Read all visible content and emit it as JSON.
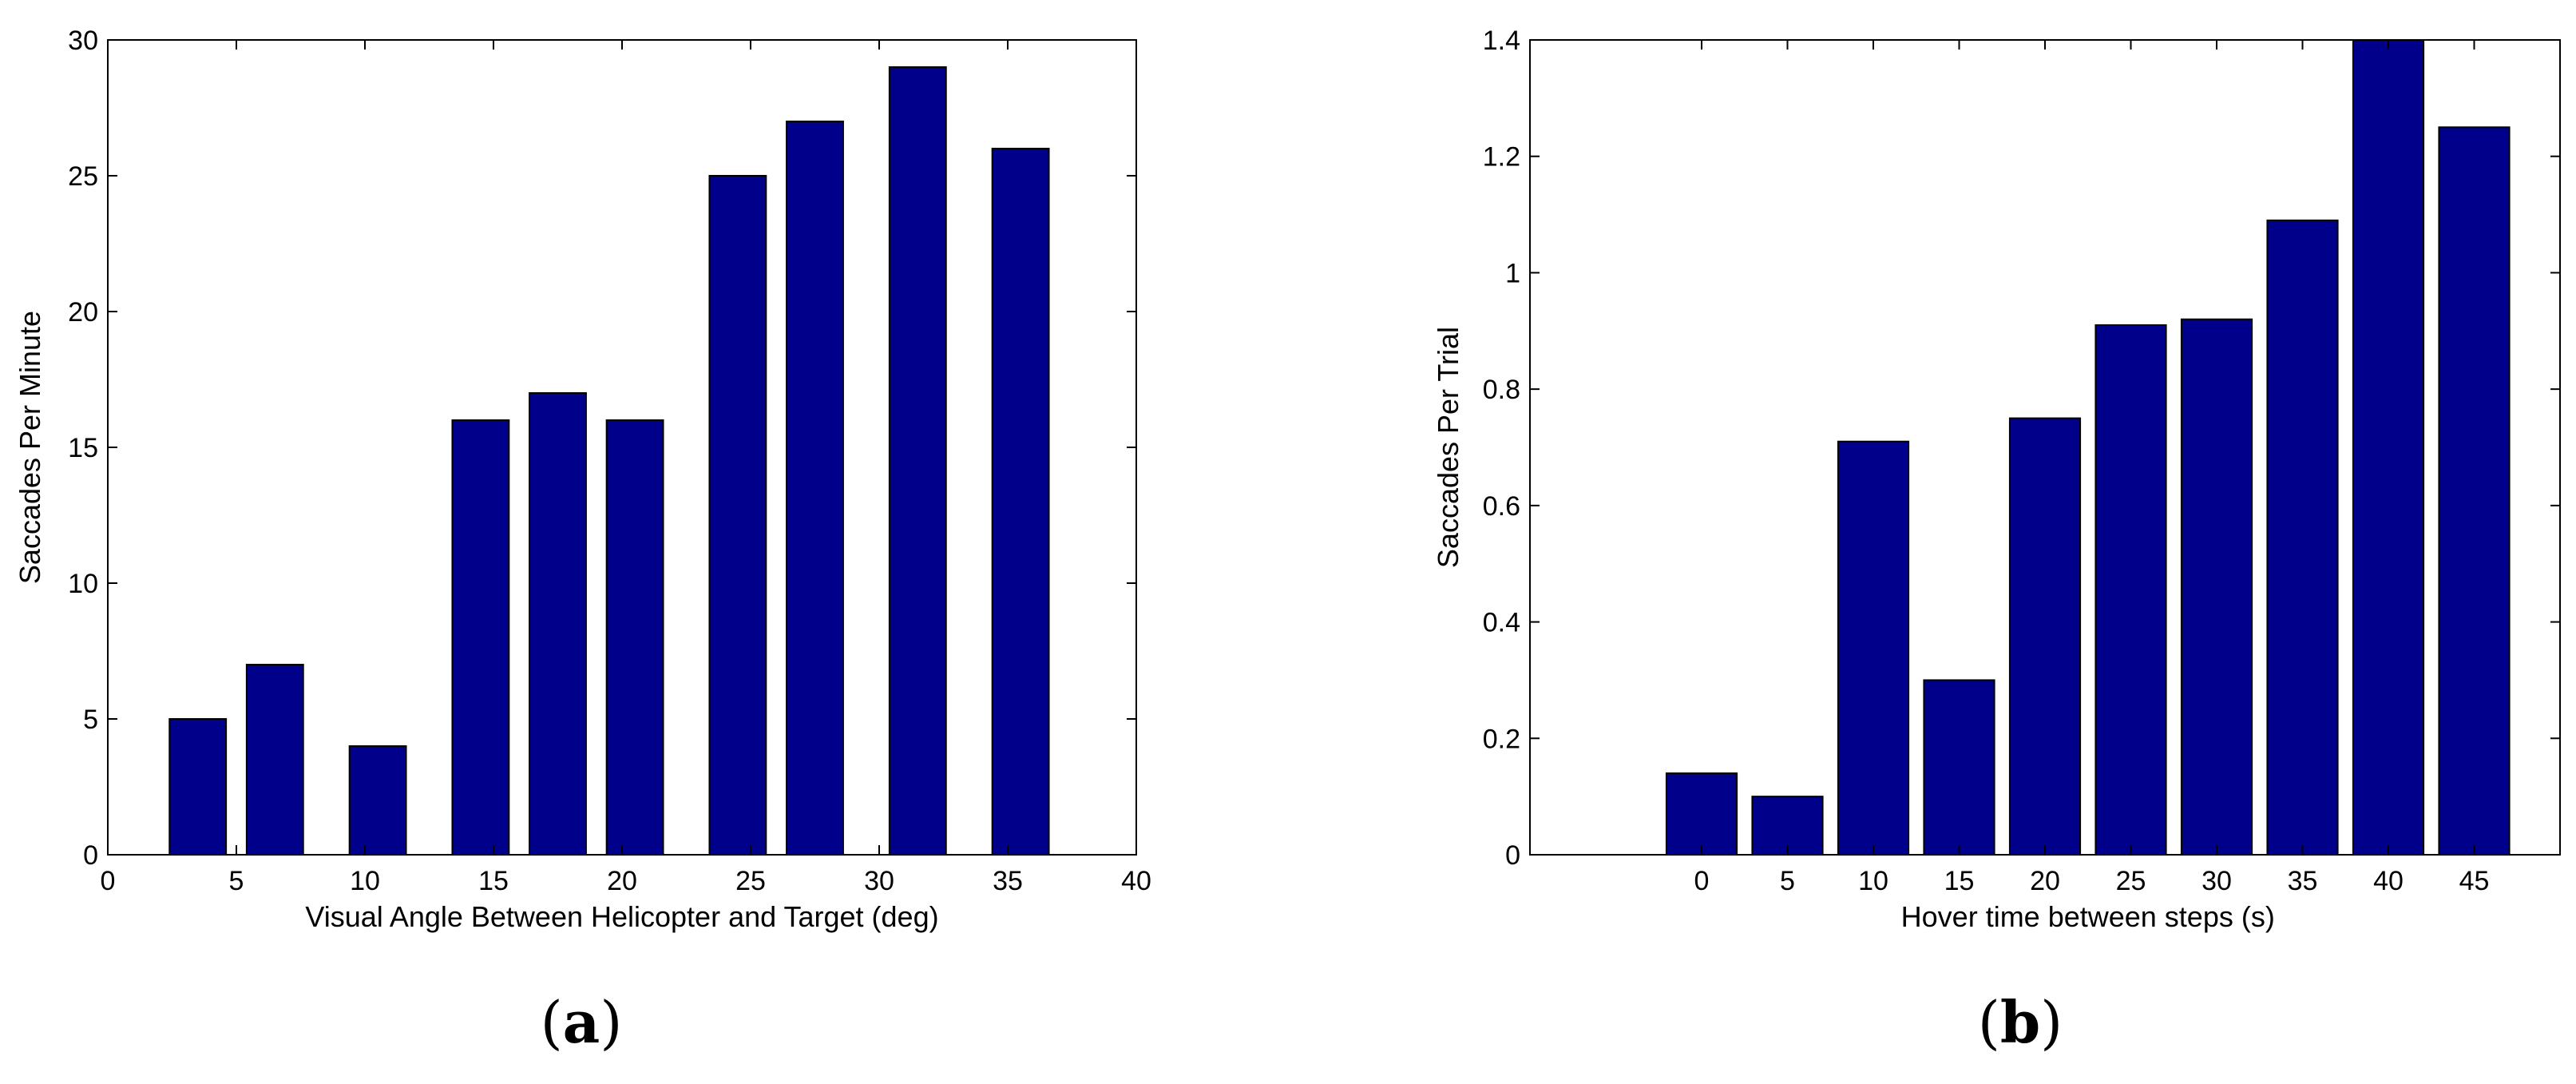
{
  "colors": {
    "bar_fill": "#00008b",
    "bar_stroke": "#000000",
    "axis": "#000000"
  },
  "panels": [
    {
      "label_open": "(",
      "label_letter": "a",
      "label_close": ")"
    },
    {
      "label_open": "(",
      "label_letter": "b",
      "label_close": ")"
    }
  ],
  "chart_data": [
    {
      "type": "bar",
      "title": "",
      "xlabel": "Visual Angle Between Helicopter and Target (deg)",
      "ylabel": "Saccades Per Minute",
      "x": [
        3.5,
        6.5,
        10.5,
        14.5,
        17.5,
        20.5,
        24.5,
        27.5,
        31.5,
        35.5
      ],
      "values": [
        5,
        7,
        4,
        16,
        17,
        16,
        25,
        27,
        29,
        26
      ],
      "bar_width": 2.2,
      "xlim": [
        0,
        40
      ],
      "ylim": [
        0,
        30
      ],
      "xticks": [
        0,
        5,
        10,
        15,
        20,
        25,
        30,
        35,
        40
      ],
      "yticks": [
        0,
        5,
        10,
        15,
        20,
        25,
        30
      ],
      "grid": false
    },
    {
      "type": "bar",
      "title": "",
      "xlabel": "Hover time between steps (s)",
      "ylabel": "Saccades Per Trial",
      "categories": [
        "0",
        "5",
        "10",
        "15",
        "20",
        "25",
        "30",
        "35",
        "40",
        "45"
      ],
      "values": [
        0.14,
        0.1,
        0.71,
        0.3,
        0.75,
        0.91,
        0.92,
        1.09,
        1.4,
        1.25
      ],
      "ylim": [
        0,
        1.4
      ],
      "yticks": [
        0,
        0.2,
        0.4,
        0.6,
        0.8,
        1,
        1.2,
        1.4
      ],
      "ytick_labels": [
        "0",
        "0.2",
        "0.4",
        "0.6",
        "0.8",
        "1",
        "1.2",
        "1.4"
      ],
      "grid": false
    }
  ]
}
